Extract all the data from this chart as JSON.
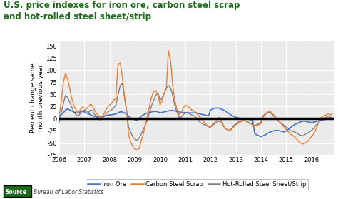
{
  "title_line1": "U.S. price indexes for iron ore, carbon steel scrap",
  "title_line2": "and hot-rolled steel sheet/strip",
  "title_color": "#1a6b1a",
  "ylabel": "Percent change same\nmonth previous year",
  "ylabel_fontsize": 6.5,
  "background_color": "#ffffff",
  "plot_bg_color": "#ebebeb",
  "ylim": [
    -75,
    160
  ],
  "yticks": [
    -75,
    -50,
    -25,
    0,
    25,
    50,
    75,
    100,
    125,
    150
  ],
  "source_label": "Bureau of Labor Statistics",
  "source_word": "Source",
  "source_color_box": "#1a6b1a",
  "iron_ore_color": "#4472c4",
  "carbon_scrap_color": "#ed7d31",
  "hotrolled_color": "#808080",
  "zero_line_color": "#000000",
  "legend_labels": [
    "Iron Ore",
    "Carbon Steel Scrap",
    "Hot-Rolled Steel Sheet/Strip"
  ],
  "iron_ore_x": [
    2006.0,
    2006.08,
    2006.17,
    2006.25,
    2006.33,
    2006.42,
    2006.5,
    2006.58,
    2006.67,
    2006.75,
    2006.83,
    2006.92,
    2007.0,
    2007.08,
    2007.17,
    2007.25,
    2007.33,
    2007.42,
    2007.5,
    2007.58,
    2007.67,
    2007.75,
    2007.83,
    2007.92,
    2008.0,
    2008.08,
    2008.17,
    2008.25,
    2008.33,
    2008.42,
    2008.5,
    2008.58,
    2008.67,
    2008.75,
    2008.83,
    2008.92,
    2009.0,
    2009.08,
    2009.17,
    2009.25,
    2009.33,
    2009.42,
    2009.5,
    2009.58,
    2009.67,
    2009.75,
    2009.83,
    2009.92,
    2010.0,
    2010.08,
    2010.17,
    2010.25,
    2010.33,
    2010.42,
    2010.5,
    2010.58,
    2010.67,
    2010.75,
    2010.83,
    2010.92,
    2011.0,
    2011.08,
    2011.17,
    2011.25,
    2011.33,
    2011.42,
    2011.5,
    2011.58,
    2011.67,
    2011.75,
    2011.83,
    2011.92,
    2012.0,
    2012.08,
    2012.17,
    2012.25,
    2012.33,
    2012.42,
    2012.5,
    2012.58,
    2012.67,
    2012.75,
    2012.83,
    2012.92,
    2013.0,
    2013.08,
    2013.17,
    2013.25,
    2013.33,
    2013.42,
    2013.5,
    2013.58,
    2013.67,
    2013.75,
    2013.83,
    2013.92,
    2014.0,
    2014.08,
    2014.17,
    2014.25,
    2014.33,
    2014.42,
    2014.5,
    2014.58,
    2014.67,
    2014.75,
    2014.83,
    2014.92,
    2015.0,
    2015.08,
    2015.17,
    2015.25,
    2015.33,
    2015.42,
    2015.5,
    2015.58,
    2015.67,
    2015.75,
    2015.83,
    2015.92,
    2016.0,
    2016.08,
    2016.17,
    2016.25,
    2016.33,
    2016.42,
    2016.5,
    2016.58,
    2016.67,
    2016.75,
    2016.83
  ],
  "iron_ore_y": [
    5,
    8,
    12,
    18,
    20,
    18,
    16,
    14,
    12,
    12,
    14,
    15,
    14,
    12,
    10,
    8,
    6,
    5,
    4,
    4,
    4,
    5,
    6,
    7,
    8,
    8,
    9,
    10,
    12,
    14,
    14,
    12,
    10,
    5,
    2,
    0,
    -2,
    -3,
    0,
    5,
    8,
    10,
    12,
    13,
    14,
    15,
    15,
    14,
    12,
    13,
    14,
    15,
    16,
    17,
    17,
    16,
    15,
    14,
    13,
    13,
    12,
    12,
    12,
    12,
    12,
    12,
    11,
    10,
    9,
    8,
    7,
    6,
    18,
    20,
    22,
    22,
    22,
    20,
    18,
    16,
    13,
    10,
    7,
    5,
    3,
    2,
    1,
    0,
    0,
    0,
    -1,
    -2,
    -3,
    -30,
    -33,
    -35,
    -37,
    -35,
    -33,
    -30,
    -28,
    -26,
    -25,
    -24,
    -24,
    -25,
    -26,
    -27,
    -25,
    -22,
    -18,
    -15,
    -12,
    -10,
    -8,
    -6,
    -5,
    -5,
    -6,
    -7,
    -8,
    -7,
    -6,
    -5,
    -4,
    -3,
    -2,
    -1,
    0,
    1,
    2
  ],
  "carbon_scrap_x": [
    2006.0,
    2006.08,
    2006.17,
    2006.25,
    2006.33,
    2006.42,
    2006.5,
    2006.58,
    2006.67,
    2006.75,
    2006.83,
    2006.92,
    2007.0,
    2007.08,
    2007.17,
    2007.25,
    2007.33,
    2007.42,
    2007.5,
    2007.58,
    2007.67,
    2007.75,
    2007.83,
    2007.92,
    2008.0,
    2008.08,
    2008.17,
    2008.25,
    2008.33,
    2008.42,
    2008.5,
    2008.58,
    2008.67,
    2008.75,
    2008.83,
    2008.92,
    2009.0,
    2009.08,
    2009.17,
    2009.25,
    2009.33,
    2009.42,
    2009.5,
    2009.58,
    2009.67,
    2009.75,
    2009.83,
    2009.92,
    2010.0,
    2010.08,
    2010.17,
    2010.25,
    2010.33,
    2010.42,
    2010.5,
    2010.58,
    2010.67,
    2010.75,
    2010.83,
    2010.92,
    2011.0,
    2011.08,
    2011.17,
    2011.25,
    2011.33,
    2011.42,
    2011.5,
    2011.58,
    2011.67,
    2011.75,
    2011.83,
    2011.92,
    2012.0,
    2012.08,
    2012.17,
    2012.25,
    2012.33,
    2012.42,
    2012.5,
    2012.58,
    2012.67,
    2012.75,
    2012.83,
    2012.92,
    2013.0,
    2013.08,
    2013.17,
    2013.25,
    2013.33,
    2013.42,
    2013.5,
    2013.58,
    2013.67,
    2013.75,
    2013.83,
    2013.92,
    2014.0,
    2014.08,
    2014.17,
    2014.25,
    2014.33,
    2014.42,
    2014.5,
    2014.58,
    2014.67,
    2014.75,
    2014.83,
    2014.92,
    2015.0,
    2015.08,
    2015.17,
    2015.25,
    2015.33,
    2015.42,
    2015.5,
    2015.58,
    2015.67,
    2015.75,
    2015.83,
    2015.92,
    2016.0,
    2016.08,
    2016.17,
    2016.25,
    2016.33,
    2016.42,
    2016.5,
    2016.58,
    2016.67,
    2016.75,
    2016.83
  ],
  "carbon_scrap_y": [
    3,
    35,
    75,
    93,
    82,
    62,
    42,
    27,
    18,
    12,
    18,
    24,
    22,
    20,
    26,
    30,
    26,
    16,
    10,
    5,
    3,
    8,
    16,
    24,
    28,
    32,
    38,
    43,
    110,
    115,
    88,
    48,
    18,
    -32,
    -47,
    -57,
    -62,
    -64,
    -61,
    -46,
    -32,
    -12,
    6,
    26,
    46,
    56,
    58,
    48,
    28,
    38,
    53,
    63,
    140,
    118,
    68,
    38,
    18,
    8,
    12,
    22,
    28,
    26,
    23,
    18,
    16,
    13,
    8,
    3,
    -2,
    -7,
    -12,
    -17,
    -17,
    -12,
    -7,
    -2,
    3,
    -2,
    -12,
    -20,
    -22,
    -24,
    -22,
    -17,
    -12,
    -10,
    -7,
    -5,
    -4,
    -5,
    -7,
    -10,
    -12,
    -14,
    -14,
    -12,
    -10,
    3,
    8,
    13,
    16,
    13,
    8,
    3,
    -2,
    -7,
    -12,
    -17,
    -22,
    -27,
    -32,
    -34,
    -37,
    -42,
    -47,
    -50,
    -52,
    -50,
    -47,
    -42,
    -37,
    -32,
    -22,
    -12,
    -2,
    3,
    6,
    8,
    10,
    8,
    10
  ],
  "hotrolled_x": [
    2006.0,
    2006.08,
    2006.17,
    2006.25,
    2006.33,
    2006.42,
    2006.5,
    2006.58,
    2006.67,
    2006.75,
    2006.83,
    2006.92,
    2007.0,
    2007.08,
    2007.17,
    2007.25,
    2007.33,
    2007.42,
    2007.5,
    2007.58,
    2007.67,
    2007.75,
    2007.83,
    2007.92,
    2008.0,
    2008.08,
    2008.17,
    2008.25,
    2008.33,
    2008.42,
    2008.5,
    2008.58,
    2008.67,
    2008.75,
    2008.83,
    2008.92,
    2009.0,
    2009.08,
    2009.17,
    2009.25,
    2009.33,
    2009.42,
    2009.5,
    2009.58,
    2009.67,
    2009.75,
    2009.83,
    2009.92,
    2010.0,
    2010.08,
    2010.17,
    2010.25,
    2010.33,
    2010.42,
    2010.5,
    2010.58,
    2010.67,
    2010.75,
    2010.83,
    2010.92,
    2011.0,
    2011.08,
    2011.17,
    2011.25,
    2011.33,
    2011.42,
    2011.5,
    2011.58,
    2011.67,
    2011.75,
    2011.83,
    2011.92,
    2012.0,
    2012.08,
    2012.17,
    2012.25,
    2012.33,
    2012.42,
    2012.5,
    2012.58,
    2012.67,
    2012.75,
    2012.83,
    2012.92,
    2013.0,
    2013.08,
    2013.17,
    2013.25,
    2013.33,
    2013.42,
    2013.5,
    2013.58,
    2013.67,
    2013.75,
    2013.83,
    2013.92,
    2014.0,
    2014.08,
    2014.17,
    2014.25,
    2014.33,
    2014.42,
    2014.5,
    2014.58,
    2014.67,
    2014.75,
    2014.83,
    2014.92,
    2015.0,
    2015.08,
    2015.17,
    2015.25,
    2015.33,
    2015.42,
    2015.5,
    2015.58,
    2015.67,
    2015.75,
    2015.83,
    2015.92,
    2016.0,
    2016.08,
    2016.17,
    2016.25,
    2016.33,
    2016.42,
    2016.5,
    2016.58,
    2016.67,
    2016.75,
    2016.83
  ],
  "hotrolled_y": [
    -8,
    12,
    32,
    48,
    44,
    34,
    24,
    14,
    8,
    6,
    10,
    16,
    18,
    16,
    13,
    18,
    16,
    8,
    3,
    -2,
    -2,
    3,
    8,
    13,
    16,
    18,
    23,
    28,
    48,
    68,
    73,
    48,
    18,
    -17,
    -27,
    -37,
    -42,
    -44,
    -40,
    -32,
    -22,
    -12,
    -2,
    13,
    28,
    38,
    48,
    53,
    38,
    43,
    53,
    63,
    68,
    63,
    48,
    28,
    13,
    3,
    3,
    8,
    13,
    13,
    10,
    8,
    6,
    3,
    -2,
    -7,
    -10,
    -12,
    -14,
    -16,
    -17,
    -14,
    -10,
    -7,
    -5,
    -7,
    -14,
    -20,
    -22,
    -24,
    -20,
    -14,
    -10,
    -7,
    -5,
    -4,
    -4,
    -5,
    -7,
    -10,
    -12,
    -14,
    -12,
    -10,
    -7,
    6,
    10,
    13,
    13,
    10,
    6,
    1,
    -4,
    -7,
    -10,
    -14,
    -17,
    -20,
    -24,
    -26,
    -27,
    -30,
    -32,
    -34,
    -35,
    -32,
    -30,
    -27,
    -24,
    -20,
    -14,
    -10,
    -5,
    -2,
    1,
    3,
    5,
    3,
    1
  ]
}
